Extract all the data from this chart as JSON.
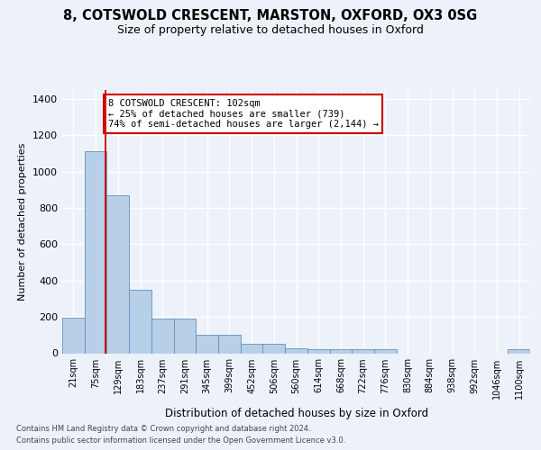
{
  "title_line1": "8, COTSWOLD CRESCENT, MARSTON, OXFORD, OX3 0SG",
  "title_line2": "Size of property relative to detached houses in Oxford",
  "xlabel": "Distribution of detached houses by size in Oxford",
  "ylabel": "Number of detached properties",
  "footnote1": "Contains HM Land Registry data © Crown copyright and database right 2024.",
  "footnote2": "Contains public sector information licensed under the Open Government Licence v3.0.",
  "bin_labels": [
    "21sqm",
    "75sqm",
    "129sqm",
    "183sqm",
    "237sqm",
    "291sqm",
    "345sqm",
    "399sqm",
    "452sqm",
    "506sqm",
    "560sqm",
    "614sqm",
    "668sqm",
    "722sqm",
    "776sqm",
    "830sqm",
    "884sqm",
    "938sqm",
    "992sqm",
    "1046sqm",
    "1100sqm"
  ],
  "bar_values": [
    195,
    1115,
    870,
    350,
    190,
    190,
    100,
    100,
    50,
    50,
    25,
    20,
    20,
    20,
    20,
    0,
    0,
    0,
    0,
    0,
    20
  ],
  "bar_color": "#b8cfe8",
  "bar_edge_color": "#6090bb",
  "property_line_x": 1.45,
  "property_line_color": "#cc0000",
  "annotation_text": "8 COTSWOLD CRESCENT: 102sqm\n← 25% of detached houses are smaller (739)\n74% of semi-detached houses are larger (2,144) →",
  "annotation_box_color": "#ffffff",
  "annotation_box_edge_color": "#cc0000",
  "ylim": [
    0,
    1450
  ],
  "yticks": [
    0,
    200,
    400,
    600,
    800,
    1000,
    1200,
    1400
  ],
  "background_color": "#edf2fa",
  "grid_color": "#ffffff",
  "title_fontsize": 10.5,
  "subtitle_fontsize": 9,
  "axis_label_fontsize": 8,
  "tick_fontsize": 7,
  "footnote_fontsize": 6
}
